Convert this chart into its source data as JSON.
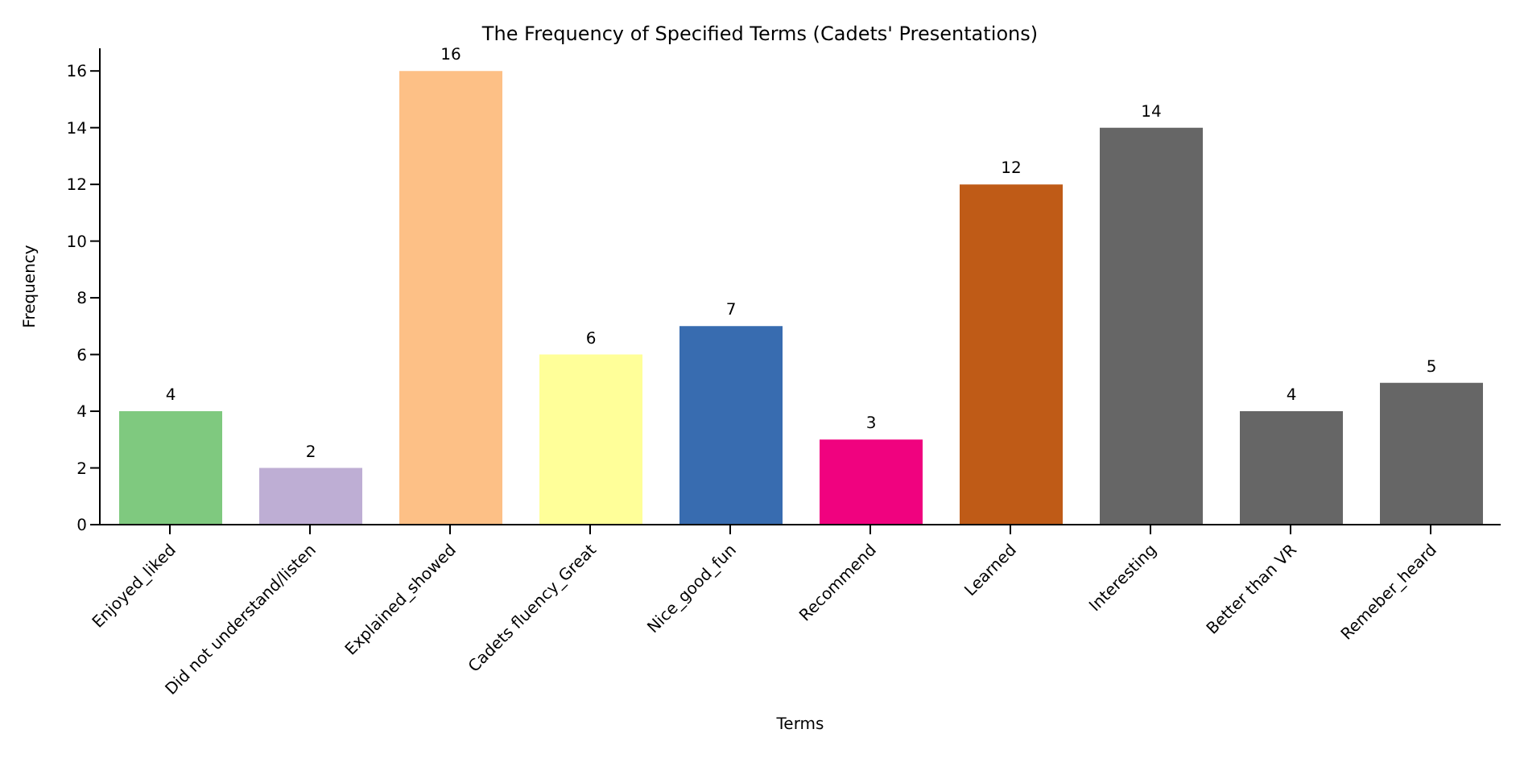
{
  "chart_data": {
    "type": "bar",
    "title": "The Frequency of Specified Terms (Cadets' Presentations)",
    "xlabel": "Terms",
    "ylabel": "Frequency",
    "categories": [
      "Enjoyed_liked",
      "Did not understand/listen",
      "Explained_showed",
      "Cadets fluency_Great",
      "Nice_good_fun",
      "Recommend",
      "Learned",
      "Interesting",
      "Better than VR",
      "Remeber_heard"
    ],
    "values": [
      4,
      2,
      16,
      6,
      7,
      3,
      12,
      14,
      4,
      5
    ],
    "colors": [
      "#7fc97f",
      "#beaed4",
      "#fdc086",
      "#ffff99",
      "#386cb0",
      "#f0027f",
      "#bf5b17",
      "#666666",
      "#666666",
      "#666666"
    ],
    "ylim": [
      0,
      16.8
    ],
    "yticks": [
      0,
      2,
      4,
      6,
      8,
      10,
      12,
      14,
      16
    ],
    "data_labels": true,
    "grid": false,
    "legend": false
  }
}
